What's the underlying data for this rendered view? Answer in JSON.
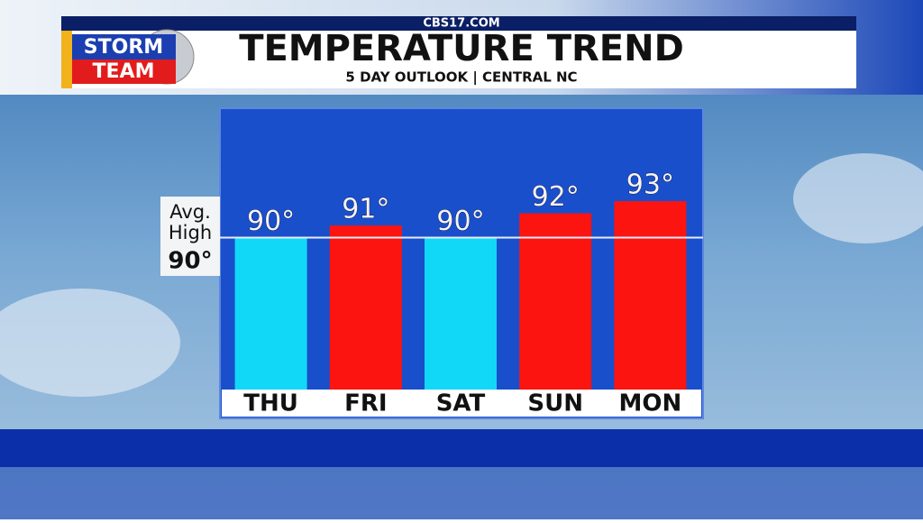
{
  "brand": {
    "site": "CBS17.COM",
    "logo_top": "STORM",
    "logo_bottom": "TEAM"
  },
  "chart_data": {
    "type": "bar",
    "title": "TEMPERATURE TREND",
    "subtitle": "5 DAY OUTLOOK | CENTRAL NC",
    "categories": [
      "THU",
      "FRI",
      "SAT",
      "SUN",
      "MON"
    ],
    "values": [
      90,
      91,
      90,
      92,
      93
    ],
    "value_labels": [
      "90°",
      "91°",
      "90°",
      "92°",
      "93°"
    ],
    "colors": [
      "#12d8f8",
      "#fc1410",
      "#12d8f8",
      "#fc1410",
      "#fc1410"
    ],
    "ylim": [
      77.5,
      100.5
    ],
    "reference": {
      "label": [
        "Avg.",
        "High"
      ],
      "value": 90,
      "value_label": "90°"
    }
  }
}
